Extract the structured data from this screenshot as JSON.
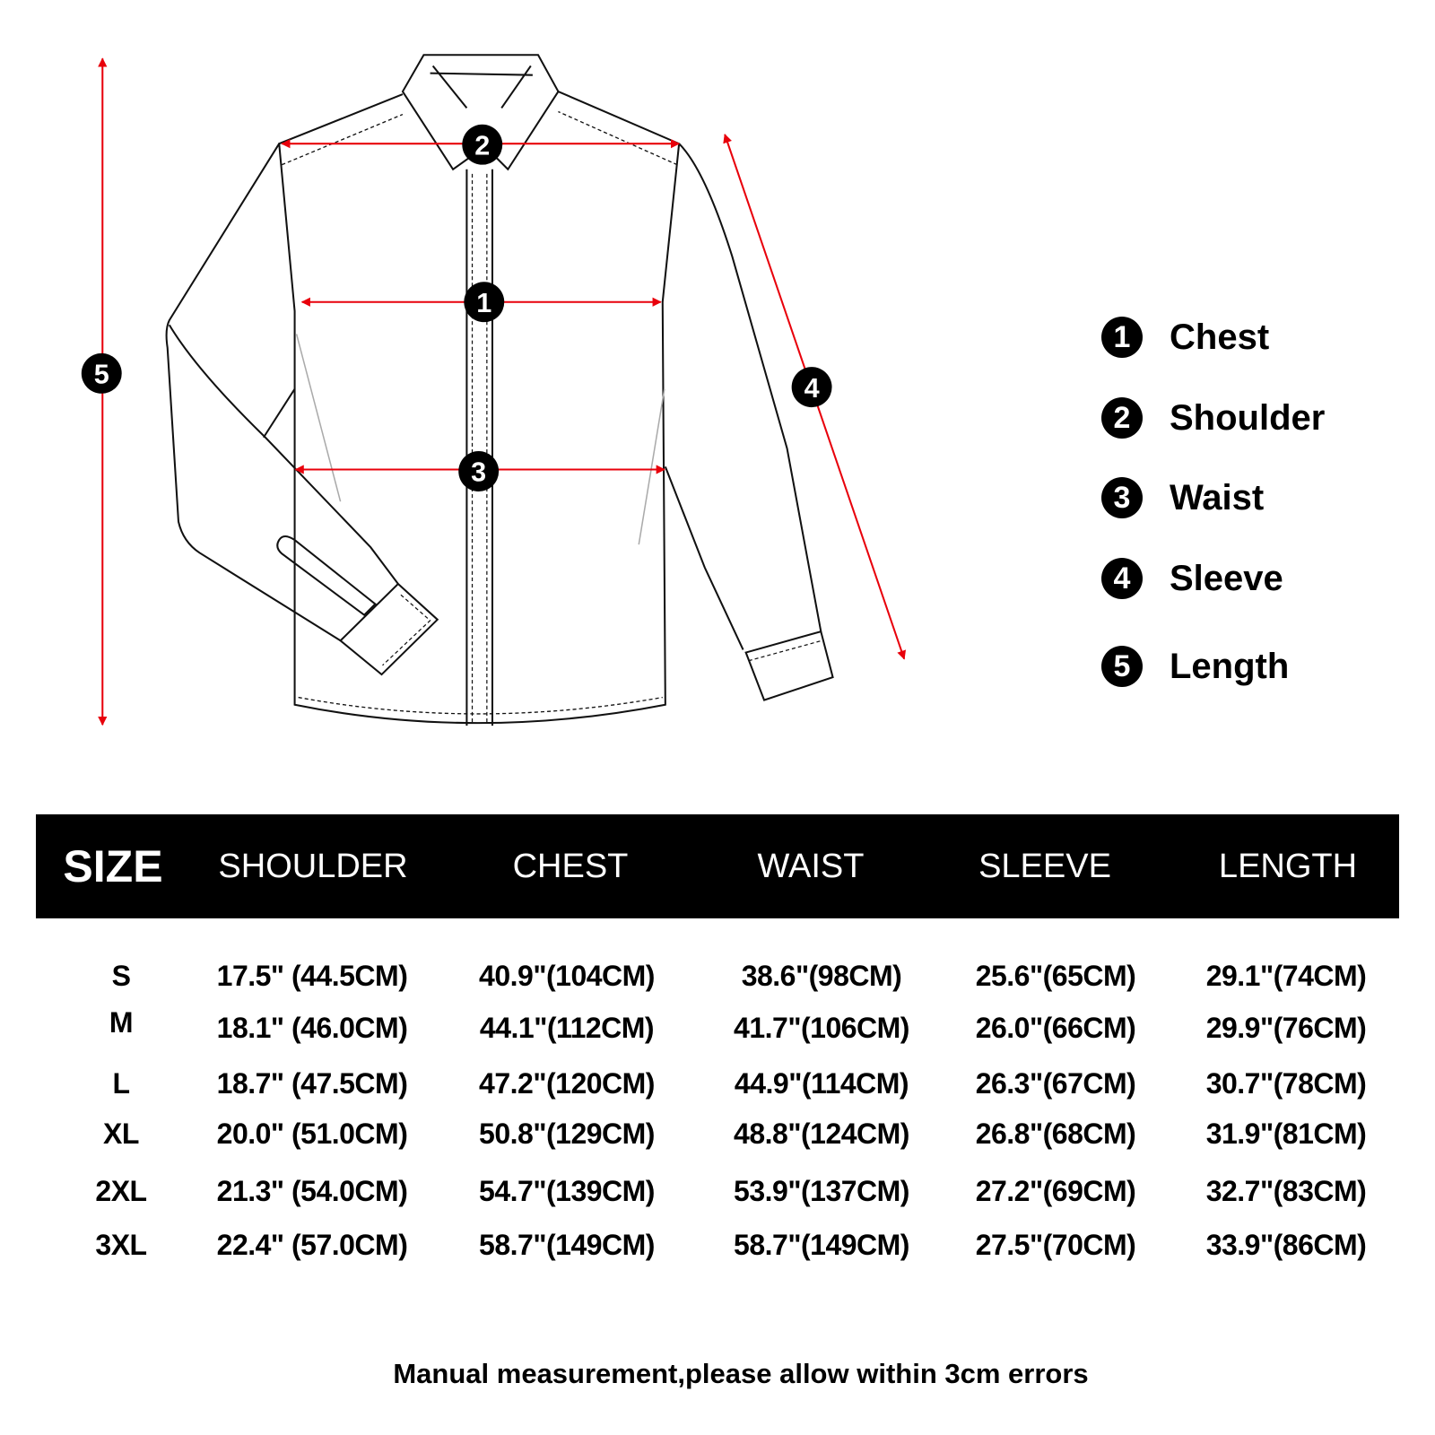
{
  "colors": {
    "arrow": "#e8000b",
    "header_bg": "#000000",
    "header_text": "#ffffff"
  },
  "diagram_markers": [
    "1",
    "2",
    "3",
    "4",
    "5"
  ],
  "legend": [
    {
      "num": "1",
      "label": "Chest"
    },
    {
      "num": "2",
      "label": "Shoulder"
    },
    {
      "num": "3",
      "label": "Waist"
    },
    {
      "num": "4",
      "label": "Sleeve"
    },
    {
      "num": "5",
      "label": "Length"
    }
  ],
  "table": {
    "headers": [
      "SIZE",
      "SHOULDER",
      "CHEST",
      "WAIST",
      "SLEEVE",
      "LENGTH"
    ],
    "rows": [
      [
        "S",
        "17.5\" (44.5CM)",
        "40.9\"(104CM)",
        "38.6\"(98CM)",
        "25.6\"(65CM)",
        "29.1\"(74CM)"
      ],
      [
        "M",
        "18.1\" (46.0CM)",
        "44.1\"(112CM)",
        "41.7\"(106CM)",
        "26.0\"(66CM)",
        "29.9\"(76CM)"
      ],
      [
        "L",
        "18.7\" (47.5CM)",
        "47.2\"(120CM)",
        "44.9\"(114CM)",
        "26.3\"(67CM)",
        "30.7\"(78CM)"
      ],
      [
        "XL",
        "20.0\" (51.0CM)",
        "50.8\"(129CM)",
        "48.8\"(124CM)",
        "26.8\"(68CM)",
        "31.9\"(81CM)"
      ],
      [
        "2XL",
        "21.3\" (54.0CM)",
        "54.7\"(139CM)",
        "53.9\"(137CM)",
        "27.2\"(69CM)",
        "32.7\"(83CM)"
      ],
      [
        "3XL",
        "22.4\" (57.0CM)",
        "58.7\"(149CM)",
        "58.7\"(149CM)",
        "27.5\"(70CM)",
        "33.9\"(86CM)"
      ]
    ]
  },
  "note": "Manual measurement,please allow within 3cm errors"
}
